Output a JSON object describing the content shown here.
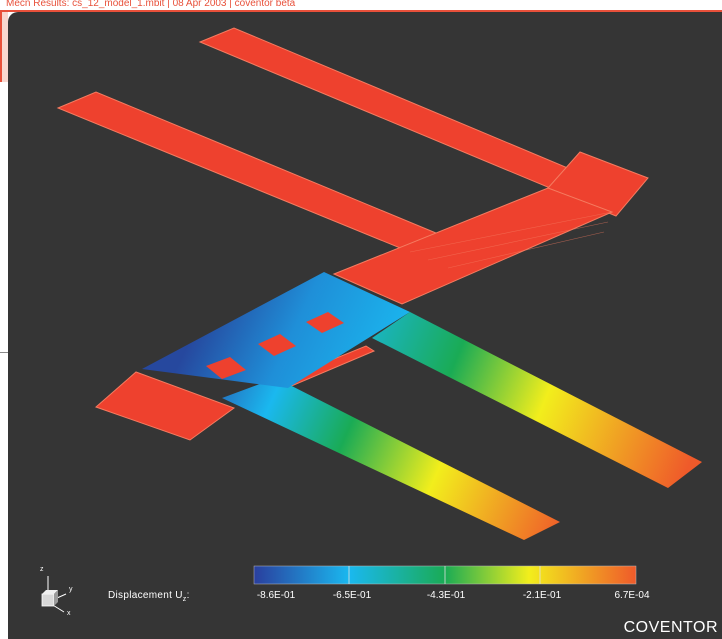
{
  "window": {
    "title": "Mecn Results: cs_12_model_1.mbit | 08 Apr 2003 | coventor beta"
  },
  "legend": {
    "label_prefix": "Displacement U",
    "label_sub": "z",
    "label_suffix": ":",
    "ticks": [
      "-8.6E-01",
      "-6.5E-01",
      "-4.3E-01",
      "-2.1E-01",
      "6.7E-04"
    ],
    "colors": [
      "#2a3f9e",
      "#1ab8ef",
      "#1aab55",
      "#f2ee1c",
      "#ef5a2a"
    ]
  },
  "triad": {
    "z": "z",
    "y": "y",
    "x": "x"
  },
  "brand": {
    "name": "COVENTOR"
  },
  "colors": {
    "background": "#353535",
    "structure": "#ee412e",
    "structure_edge": "#f57b60"
  }
}
